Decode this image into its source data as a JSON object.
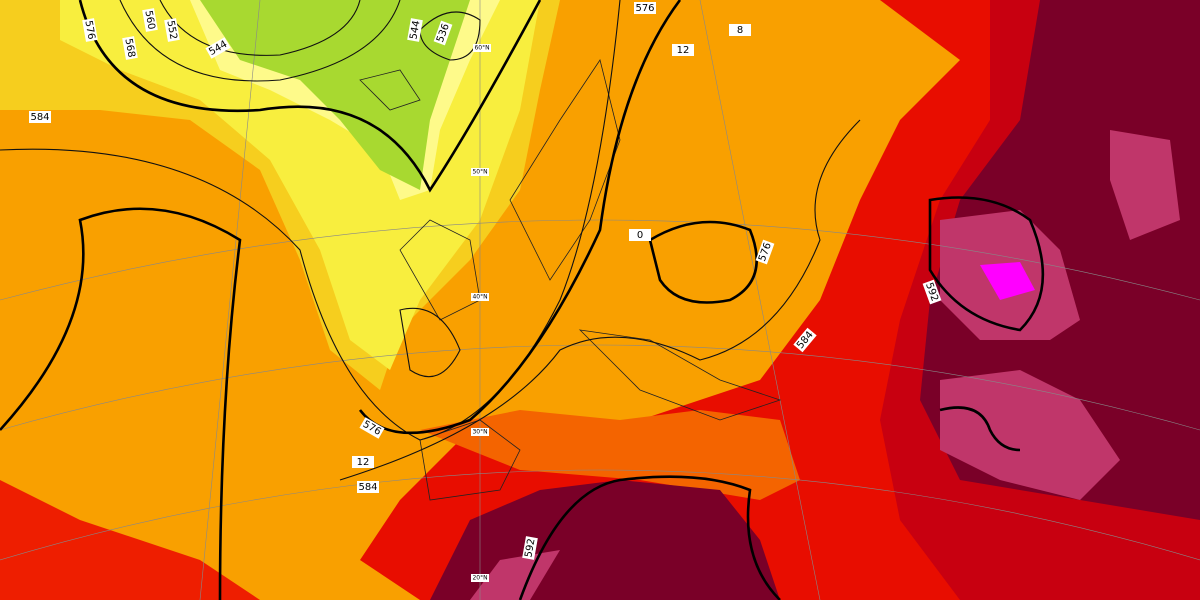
{
  "contour_labels": [
    "576",
    "568",
    "560",
    "552",
    "544",
    "544",
    "536",
    "576",
    "584",
    "576",
    "584",
    "592",
    "576",
    "584",
    "592",
    "0",
    "12",
    "8",
    "12"
  ],
  "graticule_labels": [
    "60°N",
    "50°N",
    "40°N",
    "30°N",
    "20°N"
  ]
}
